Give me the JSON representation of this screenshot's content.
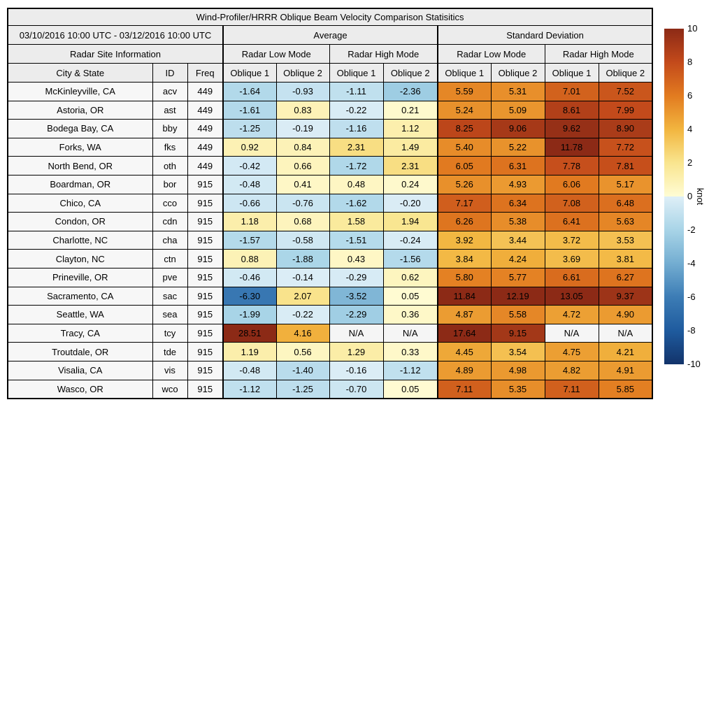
{
  "title": "Wind-Profiler/HRRR Oblique Beam Velocity Comparison Statisitics",
  "table": {
    "date_range": "03/10/2016 10:00 UTC - 03/12/2016 10:00 UTC",
    "group_average": "Average",
    "group_std": "Standard Deviation",
    "site_info": "Radar Site Information",
    "mode_headers": [
      "Radar Low Mode",
      "Radar High Mode",
      "Radar Low Mode",
      "Radar High Mode"
    ],
    "col_headers": [
      "City & State",
      "ID",
      "Freq",
      "Oblique 1",
      "Oblique 2",
      "Oblique 1",
      "Oblique 2",
      "Oblique 1",
      "Oblique 2",
      "Oblique 1",
      "Oblique 2"
    ],
    "na_text": "N/A"
  },
  "colors": {
    "header_bg": "#ececec",
    "label_cell_bg": "#f7f7f7",
    "na_cell": "#f5f5f5",
    "border": "#000000",
    "text": "#000000"
  },
  "chart_data": {
    "type": "heatmap",
    "title": "Wind-Profiler/HRRR Oblique Beam Velocity Comparison Statisitics",
    "unit": "knot",
    "value_range": [
      -10,
      10
    ],
    "colorbar": {
      "label": "knot",
      "ticks": [
        10,
        8,
        6,
        4,
        2,
        0,
        -2,
        -4,
        -6,
        -8,
        -10
      ]
    },
    "colormap_stops": {
      "negative": [
        [
          -10,
          "#12336a"
        ],
        [
          -8,
          "#1f5b9e"
        ],
        [
          -6,
          "#3c7cb5"
        ],
        [
          -4,
          "#73add1"
        ],
        [
          -2,
          "#a8d4e7"
        ],
        [
          0,
          "#dfeff7"
        ]
      ],
      "positive": [
        [
          0,
          "#fffcd4"
        ],
        [
          2,
          "#f9e58f"
        ],
        [
          4,
          "#f2b53f"
        ],
        [
          6,
          "#e27b20"
        ],
        [
          8,
          "#c34a1b"
        ],
        [
          10,
          "#8c2a16"
        ]
      ]
    },
    "rows": [
      {
        "city": "McKinleyville, CA",
        "id": "acv",
        "freq": "449",
        "values": [
          -1.64,
          -0.93,
          -1.11,
          -2.36,
          5.59,
          5.31,
          7.01,
          7.52
        ]
      },
      {
        "city": "Astoria, OR",
        "id": "ast",
        "freq": "449",
        "values": [
          -1.61,
          0.83,
          -0.22,
          0.21,
          5.24,
          5.09,
          8.61,
          7.99
        ]
      },
      {
        "city": "Bodega Bay, CA",
        "id": "bby",
        "freq": "449",
        "values": [
          -1.25,
          -0.19,
          -1.16,
          1.12,
          8.25,
          9.06,
          9.62,
          8.9
        ]
      },
      {
        "city": "Forks, WA",
        "id": "fks",
        "freq": "449",
        "values": [
          0.92,
          0.84,
          2.31,
          1.49,
          5.4,
          5.22,
          11.78,
          7.72
        ]
      },
      {
        "city": "North Bend, OR",
        "id": "oth",
        "freq": "449",
        "values": [
          -0.42,
          0.66,
          -1.72,
          2.31,
          6.05,
          6.31,
          7.78,
          7.81
        ]
      },
      {
        "city": "Boardman, OR",
        "id": "bor",
        "freq": "915",
        "values": [
          -0.48,
          0.41,
          0.48,
          0.24,
          5.26,
          4.93,
          6.06,
          5.17
        ]
      },
      {
        "city": "Chico, CA",
        "id": "cco",
        "freq": "915",
        "values": [
          -0.66,
          -0.76,
          -1.62,
          -0.2,
          7.17,
          6.34,
          7.08,
          6.48
        ]
      },
      {
        "city": "Condon, OR",
        "id": "cdn",
        "freq": "915",
        "values": [
          1.18,
          0.68,
          1.58,
          1.94,
          6.26,
          5.38,
          6.41,
          5.63
        ]
      },
      {
        "city": "Charlotte, NC",
        "id": "cha",
        "freq": "915",
        "values": [
          -1.57,
          -0.58,
          -1.51,
          -0.24,
          3.92,
          3.44,
          3.72,
          3.53
        ]
      },
      {
        "city": "Clayton, NC",
        "id": "ctn",
        "freq": "915",
        "values": [
          0.88,
          -1.88,
          0.43,
          -1.56,
          3.84,
          4.24,
          3.69,
          3.81
        ]
      },
      {
        "city": "Prineville, OR",
        "id": "pve",
        "freq": "915",
        "values": [
          -0.46,
          -0.14,
          -0.29,
          0.62,
          5.8,
          5.77,
          6.61,
          6.27
        ]
      },
      {
        "city": "Sacramento, CA",
        "id": "sac",
        "freq": "915",
        "values": [
          -6.3,
          2.07,
          -3.52,
          0.05,
          11.84,
          12.19,
          13.05,
          9.37
        ]
      },
      {
        "city": "Seattle, WA",
        "id": "sea",
        "freq": "915",
        "values": [
          -1.99,
          -0.22,
          -2.29,
          0.36,
          4.87,
          5.58,
          4.72,
          4.9
        ]
      },
      {
        "city": "Tracy, CA",
        "id": "tcy",
        "freq": "915",
        "values": [
          28.51,
          4.16,
          null,
          null,
          17.64,
          9.15,
          null,
          null
        ]
      },
      {
        "city": "Troutdale, OR",
        "id": "tde",
        "freq": "915",
        "values": [
          1.19,
          0.56,
          1.29,
          0.33,
          4.45,
          3.54,
          4.75,
          4.21
        ]
      },
      {
        "city": "Visalia, CA",
        "id": "vis",
        "freq": "915",
        "values": [
          -0.48,
          -1.4,
          -0.16,
          -1.12,
          4.89,
          4.98,
          4.82,
          4.91
        ]
      },
      {
        "city": "Wasco, OR",
        "id": "wco",
        "freq": "915",
        "values": [
          -1.12,
          -1.25,
          -0.7,
          0.05,
          7.11,
          5.35,
          7.11,
          5.85
        ]
      }
    ]
  }
}
